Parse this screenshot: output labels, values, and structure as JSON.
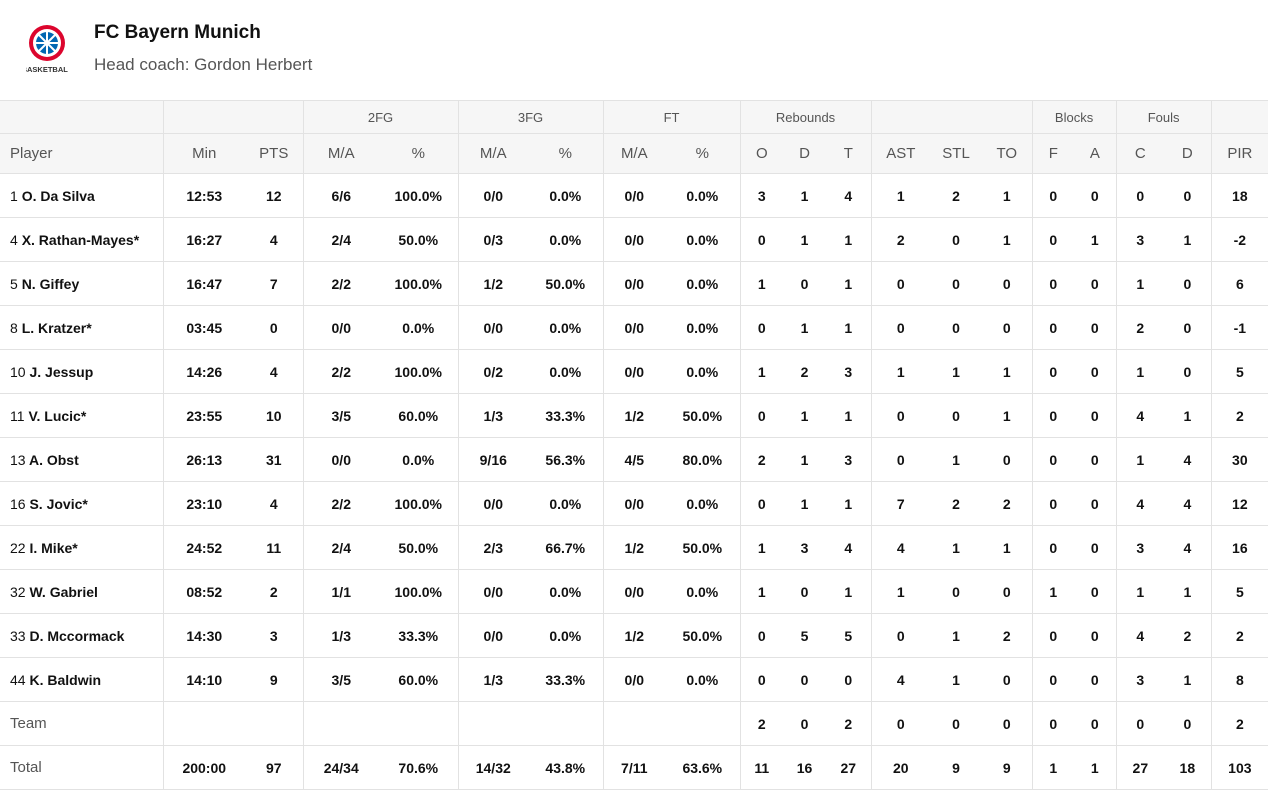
{
  "header": {
    "title": "FC Bayern Munich",
    "subtitle": "Head coach: Gordon Herbert",
    "logo_text": "BASKETBALL"
  },
  "table": {
    "groups": [
      null,
      null,
      "2FG",
      "3FG",
      "FT",
      "Rebounds",
      null,
      "Blocks",
      "Fouls",
      null
    ],
    "columns": [
      "Player",
      "Min",
      "PTS",
      "M/A",
      "%",
      "M/A",
      "%",
      "M/A",
      "%",
      "O",
      "D",
      "T",
      "AST",
      "STL",
      "TO",
      "F",
      "A",
      "C",
      "D",
      "PIR"
    ],
    "rows": [
      {
        "number": "1",
        "name": "O. Da Silva",
        "stats": [
          "12:53",
          "12",
          "6/6",
          "100.0%",
          "0/0",
          "0.0%",
          "0/0",
          "0.0%",
          "3",
          "1",
          "4",
          "1",
          "2",
          "1",
          "0",
          "0",
          "0",
          "0",
          "18"
        ]
      },
      {
        "number": "4",
        "name": "X. Rathan-Mayes*",
        "stats": [
          "16:27",
          "4",
          "2/4",
          "50.0%",
          "0/3",
          "0.0%",
          "0/0",
          "0.0%",
          "0",
          "1",
          "1",
          "2",
          "0",
          "1",
          "0",
          "1",
          "3",
          "1",
          "-2"
        ]
      },
      {
        "number": "5",
        "name": "N. Giffey",
        "stats": [
          "16:47",
          "7",
          "2/2",
          "100.0%",
          "1/2",
          "50.0%",
          "0/0",
          "0.0%",
          "1",
          "0",
          "1",
          "0",
          "0",
          "0",
          "0",
          "0",
          "1",
          "0",
          "6"
        ]
      },
      {
        "number": "8",
        "name": "L. Kratzer*",
        "stats": [
          "03:45",
          "0",
          "0/0",
          "0.0%",
          "0/0",
          "0.0%",
          "0/0",
          "0.0%",
          "0",
          "1",
          "1",
          "0",
          "0",
          "0",
          "0",
          "0",
          "2",
          "0",
          "-1"
        ]
      },
      {
        "number": "10",
        "name": "J. Jessup",
        "stats": [
          "14:26",
          "4",
          "2/2",
          "100.0%",
          "0/2",
          "0.0%",
          "0/0",
          "0.0%",
          "1",
          "2",
          "3",
          "1",
          "1",
          "1",
          "0",
          "0",
          "1",
          "0",
          "5"
        ]
      },
      {
        "number": "11",
        "name": "V. Lucic*",
        "stats": [
          "23:55",
          "10",
          "3/5",
          "60.0%",
          "1/3",
          "33.3%",
          "1/2",
          "50.0%",
          "0",
          "1",
          "1",
          "0",
          "0",
          "1",
          "0",
          "0",
          "4",
          "1",
          "2"
        ]
      },
      {
        "number": "13",
        "name": "A. Obst",
        "stats": [
          "26:13",
          "31",
          "0/0",
          "0.0%",
          "9/16",
          "56.3%",
          "4/5",
          "80.0%",
          "2",
          "1",
          "3",
          "0",
          "1",
          "0",
          "0",
          "0",
          "1",
          "4",
          "30"
        ]
      },
      {
        "number": "16",
        "name": "S. Jovic*",
        "stats": [
          "23:10",
          "4",
          "2/2",
          "100.0%",
          "0/0",
          "0.0%",
          "0/0",
          "0.0%",
          "0",
          "1",
          "1",
          "7",
          "2",
          "2",
          "0",
          "0",
          "4",
          "4",
          "12"
        ]
      },
      {
        "number": "22",
        "name": "I. Mike*",
        "stats": [
          "24:52",
          "11",
          "2/4",
          "50.0%",
          "2/3",
          "66.7%",
          "1/2",
          "50.0%",
          "1",
          "3",
          "4",
          "4",
          "1",
          "1",
          "0",
          "0",
          "3",
          "4",
          "16"
        ]
      },
      {
        "number": "32",
        "name": "W. Gabriel",
        "stats": [
          "08:52",
          "2",
          "1/1",
          "100.0%",
          "0/0",
          "0.0%",
          "0/0",
          "0.0%",
          "1",
          "0",
          "1",
          "1",
          "0",
          "0",
          "1",
          "0",
          "1",
          "1",
          "5"
        ]
      },
      {
        "number": "33",
        "name": "D. Mccormack",
        "stats": [
          "14:30",
          "3",
          "1/3",
          "33.3%",
          "0/0",
          "0.0%",
          "1/2",
          "50.0%",
          "0",
          "5",
          "5",
          "0",
          "1",
          "2",
          "0",
          "0",
          "4",
          "2",
          "2"
        ]
      },
      {
        "number": "44",
        "name": "K. Baldwin",
        "stats": [
          "14:10",
          "9",
          "3/5",
          "60.0%",
          "1/3",
          "33.3%",
          "0/0",
          "0.0%",
          "0",
          "0",
          "0",
          "4",
          "1",
          "0",
          "0",
          "0",
          "3",
          "1",
          "8"
        ]
      }
    ],
    "team": {
      "label": "Team",
      "stats": [
        null,
        null,
        null,
        null,
        null,
        null,
        null,
        null,
        "2",
        "0",
        "2",
        "0",
        "0",
        "0",
        "0",
        "0",
        "0",
        "0",
        "2"
      ]
    },
    "total": {
      "label": "Total",
      "stats": [
        "200:00",
        "97",
        "24/34",
        "70.6%",
        "14/32",
        "43.8%",
        "7/11",
        "63.6%",
        "11",
        "16",
        "27",
        "20",
        "9",
        "9",
        "1",
        "1",
        "27",
        "18",
        "103"
      ]
    }
  }
}
